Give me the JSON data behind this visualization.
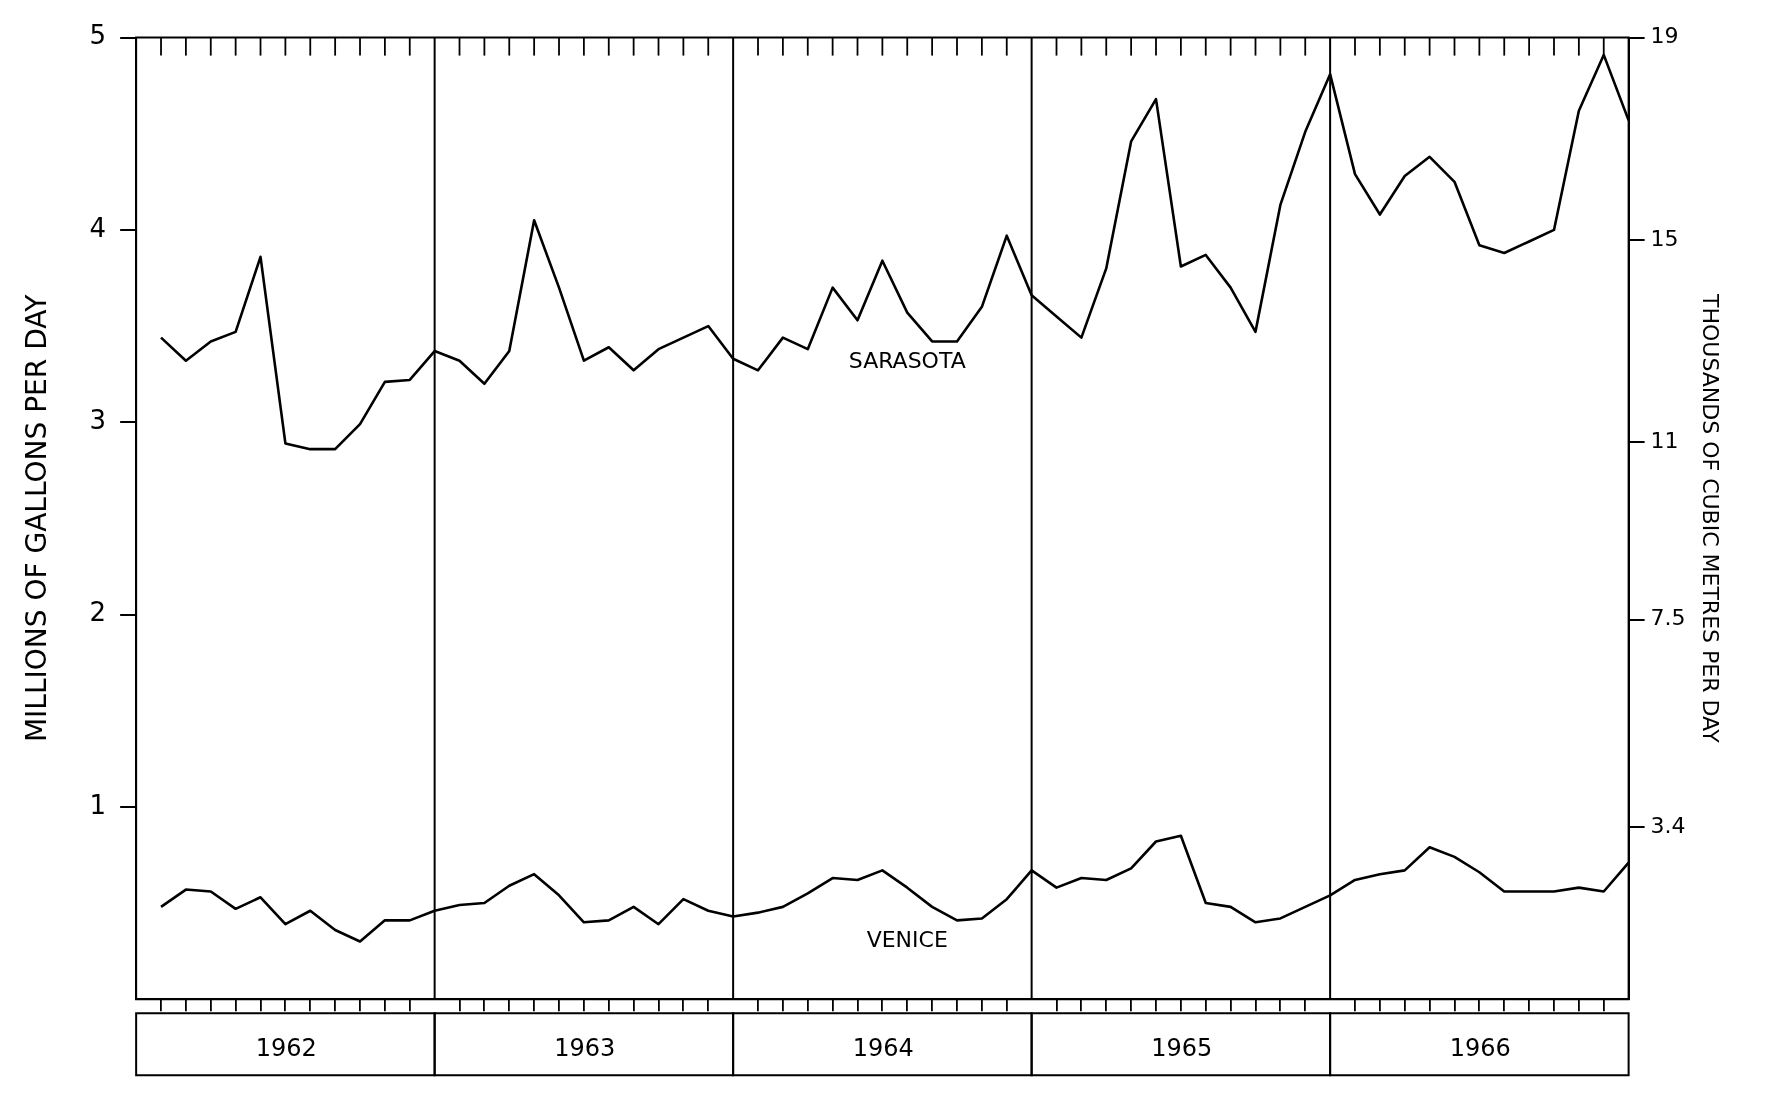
{
  "chart_data": {
    "type": "line",
    "ylabel": "MILLIONS OF GALLONS PER DAY",
    "y2label": "THOUSANDS OF CUBIC METRES PER DAY",
    "x": [
      "1962-01-31",
      "1962-02-28",
      "1962-03-31",
      "1962-04-30",
      "1962-05-31",
      "1962-06-30",
      "1962-07-31",
      "1962-08-31",
      "1962-09-30",
      "1962-10-31",
      "1962-11-30",
      "1962-12-31",
      "1963-01-31",
      "1963-02-28",
      "1963-03-31",
      "1963-04-30",
      "1963-05-31",
      "1963-06-30",
      "1963-07-31",
      "1963-08-31",
      "1963-09-30",
      "1963-10-31",
      "1963-11-30",
      "1963-12-31",
      "1964-01-31",
      "1964-02-29",
      "1964-03-31",
      "1964-04-30",
      "1964-05-31",
      "1964-06-30",
      "1964-07-31",
      "1964-08-31",
      "1964-09-30",
      "1964-10-31",
      "1964-11-30",
      "1964-12-31",
      "1965-01-31",
      "1965-02-28",
      "1965-03-31",
      "1965-04-30",
      "1965-05-31",
      "1965-06-30",
      "1965-07-31",
      "1965-08-31",
      "1965-09-30",
      "1965-10-31",
      "1965-11-30",
      "1965-12-31",
      "1966-01-31",
      "1966-02-28",
      "1966-03-31",
      "1966-04-30",
      "1966-05-31",
      "1966-06-30",
      "1966-07-31",
      "1966-08-31",
      "1966-09-30",
      "1966-10-31",
      "1966-11-30",
      "1966-12-31"
    ],
    "series": [
      {
        "name": "SARASOTA",
        "color": "#000000",
        "values": [
          3.44,
          3.32,
          3.42,
          3.47,
          3.86,
          2.89,
          2.86,
          2.86,
          2.99,
          3.21,
          3.22,
          3.37,
          3.32,
          3.2,
          3.37,
          4.05,
          3.7,
          3.32,
          3.39,
          3.27,
          3.38,
          3.44,
          3.5,
          3.33,
          3.27,
          3.44,
          3.38,
          3.7,
          3.53,
          3.84,
          3.57,
          3.42,
          3.42,
          3.6,
          3.97,
          3.66,
          3.55,
          3.44,
          3.8,
          4.46,
          4.68,
          3.81,
          3.87,
          3.7,
          3.47,
          4.13,
          4.51,
          4.81,
          4.29,
          4.08,
          4.28,
          4.38,
          4.25,
          3.92,
          3.88,
          3.94,
          4.0,
          4.62,
          4.91,
          4.57
        ]
      },
      {
        "name": "VENICE",
        "color": "#000000",
        "values": [
          0.48,
          0.57,
          0.56,
          0.47,
          0.53,
          0.39,
          0.46,
          0.36,
          0.3,
          0.41,
          0.41,
          0.46,
          0.49,
          0.5,
          0.59,
          0.65,
          0.54,
          0.4,
          0.41,
          0.48,
          0.39,
          0.52,
          0.46,
          0.43,
          0.45,
          0.48,
          0.55,
          0.63,
          0.62,
          0.67,
          0.58,
          0.48,
          0.41,
          0.42,
          0.52,
          0.67,
          0.58,
          0.63,
          0.62,
          0.68,
          0.82,
          0.85,
          0.5,
          0.48,
          0.4,
          0.42,
          0.48,
          0.54,
          0.62,
          0.65,
          0.67,
          0.79,
          0.74,
          0.66,
          0.56,
          0.56,
          0.56,
          0.58,
          0.56,
          0.71
        ]
      }
    ],
    "xlim": [
      "1961-12-31",
      "1966-12-31"
    ],
    "xticks": [
      {
        "value": "1962-07-01",
        "label": "1962"
      },
      {
        "value": "1963-07-01",
        "label": "1963"
      },
      {
        "value": "1964-07-01",
        "label": "1964"
      },
      {
        "value": "1965-07-01",
        "label": "1965"
      },
      {
        "value": "1966-07-01",
        "label": "1966"
      },
      {
        "value": "1962-01-31",
        "label": null
      },
      {
        "value": "1962-02-28",
        "label": null
      },
      {
        "value": "1962-03-31",
        "label": null
      },
      {
        "value": "1962-04-30",
        "label": null
      },
      {
        "value": "1962-05-31",
        "label": null
      },
      {
        "value": "1962-06-30",
        "label": null
      },
      {
        "value": "1962-07-31",
        "label": null
      },
      {
        "value": "1962-08-31",
        "label": null
      },
      {
        "value": "1962-09-30",
        "label": null
      },
      {
        "value": "1962-10-31",
        "label": null
      },
      {
        "value": "1962-11-30",
        "label": null
      },
      {
        "value": "1963-01-31",
        "label": null
      },
      {
        "value": "1963-02-28",
        "label": null
      },
      {
        "value": "1963-03-31",
        "label": null
      },
      {
        "value": "1963-04-30",
        "label": null
      },
      {
        "value": "1963-05-31",
        "label": null
      },
      {
        "value": "1963-06-30",
        "label": null
      },
      {
        "value": "1963-07-31",
        "label": null
      },
      {
        "value": "1963-08-31",
        "label": null
      },
      {
        "value": "1963-09-30",
        "label": null
      },
      {
        "value": "1963-10-31",
        "label": null
      },
      {
        "value": "1963-11-30",
        "label": null
      },
      {
        "value": "1964-01-31",
        "label": null
      },
      {
        "value": "1964-02-29",
        "label": null
      },
      {
        "value": "1964-03-31",
        "label": null
      },
      {
        "value": "1964-04-30",
        "label": null
      },
      {
        "value": "1964-05-31",
        "label": null
      },
      {
        "value": "1964-06-30",
        "label": null
      },
      {
        "value": "1964-07-31",
        "label": null
      },
      {
        "value": "1964-08-31",
        "label": null
      },
      {
        "value": "1964-09-30",
        "label": null
      },
      {
        "value": "1964-10-31",
        "label": null
      },
      {
        "value": "1964-11-30",
        "label": null
      },
      {
        "value": "1965-01-31",
        "label": null
      },
      {
        "value": "1965-02-28",
        "label": null
      },
      {
        "value": "1965-03-31",
        "label": null
      },
      {
        "value": "1965-04-30",
        "label": null
      },
      {
        "value": "1965-05-31",
        "label": null
      },
      {
        "value": "1965-06-30",
        "label": null
      },
      {
        "value": "1965-07-31",
        "label": null
      },
      {
        "value": "1965-08-31",
        "label": null
      },
      {
        "value": "1965-09-30",
        "label": null
      },
      {
        "value": "1965-10-31",
        "label": null
      },
      {
        "value": "1965-11-30",
        "label": null
      },
      {
        "value": "1966-01-31",
        "label": null
      },
      {
        "value": "1966-02-28",
        "label": null
      },
      {
        "value": "1966-03-31",
        "label": null
      },
      {
        "value": "1966-04-30",
        "label": null
      },
      {
        "value": "1966-05-31",
        "label": null
      },
      {
        "value": "1966-06-30",
        "label": null
      },
      {
        "value": "1966-07-31",
        "label": null
      },
      {
        "value": "1966-08-31",
        "label": null
      },
      {
        "value": "1966-09-30",
        "label": null
      },
      {
        "value": "1966-10-31",
        "label": null
      },
      {
        "value": "1966-11-30",
        "label": null
      }
    ],
    "ylim": [
      0,
      5
    ],
    "yticks": [
      1,
      2,
      3,
      4,
      5
    ],
    "y2lim": [
      0,
      19
    ],
    "y2ticks": [
      3.4,
      7.5,
      11,
      15,
      19
    ],
    "ref_lines": [
      {
        "axis": "x",
        "value": "1962-12-31",
        "color": "#000000"
      },
      {
        "axis": "x",
        "value": "1963-12-31",
        "color": "#000000"
      },
      {
        "axis": "x",
        "value": "1964-12-31",
        "color": "#000000"
      },
      {
        "axis": "x",
        "value": "1965-12-31",
        "color": "#000000"
      }
    ],
    "grid": false,
    "legend": false,
    "marker": "none",
    "line_style": "solid"
  }
}
